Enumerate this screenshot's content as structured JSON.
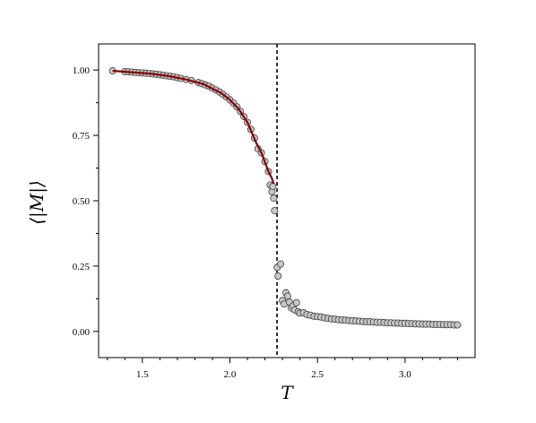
{
  "chart_data": {
    "type": "scatter",
    "xlabel": "T",
    "ylabel": "⟨|M|⟩",
    "xlim": [
      1.25,
      3.4
    ],
    "ylim": [
      -0.1,
      1.1
    ],
    "x_ticks": [
      1.5,
      2.0,
      2.5,
      3.0
    ],
    "x_tick_labels": [
      "1.5",
      "2.0",
      "2.5",
      "3.0"
    ],
    "y_ticks": [
      0.0,
      0.25,
      0.5,
      0.75,
      1.0
    ],
    "y_tick_labels": [
      "0.00",
      "0.25",
      "0.50",
      "0.75",
      "1.00"
    ],
    "grid": false,
    "critical_line": {
      "x": 2.269,
      "style": "dashed",
      "color": "#000000"
    },
    "marker_fill": "#c8c8c8",
    "marker_stroke": "#404040",
    "fit_color": "#8b0000",
    "series": [
      {
        "kind": "points",
        "points": [
          [
            1.33,
            0.997
          ],
          [
            1.4,
            0.994
          ],
          [
            1.42,
            0.993
          ],
          [
            1.44,
            0.992
          ],
          [
            1.46,
            0.991
          ],
          [
            1.48,
            0.99
          ],
          [
            1.5,
            0.989
          ],
          [
            1.52,
            0.988
          ],
          [
            1.54,
            0.987
          ],
          [
            1.56,
            0.985
          ],
          [
            1.58,
            0.984
          ],
          [
            1.6,
            0.982
          ],
          [
            1.62,
            0.98
          ],
          [
            1.64,
            0.978
          ],
          [
            1.66,
            0.976
          ],
          [
            1.68,
            0.974
          ],
          [
            1.7,
            0.971
          ],
          [
            1.72,
            0.968
          ],
          [
            1.75,
            0.964
          ],
          [
            1.78,
            0.96
          ],
          [
            1.82,
            0.952
          ],
          [
            1.84,
            0.948
          ],
          [
            1.86,
            0.943
          ],
          [
            1.88,
            0.938
          ],
          [
            1.9,
            0.931
          ],
          [
            1.92,
            0.924
          ],
          [
            1.94,
            0.916
          ],
          [
            1.96,
            0.907
          ],
          [
            1.98,
            0.897
          ],
          [
            2.0,
            0.886
          ],
          [
            2.02,
            0.874
          ],
          [
            2.04,
            0.859
          ],
          [
            2.06,
            0.842
          ],
          [
            2.08,
            0.822
          ],
          [
            2.1,
            0.8
          ],
          [
            2.12,
            0.773
          ],
          [
            2.14,
            0.74
          ],
          [
            2.16,
            0.699
          ],
          [
            2.18,
            0.683
          ],
          [
            2.2,
            0.65
          ],
          [
            2.22,
            0.612
          ],
          [
            2.23,
            0.56
          ],
          [
            2.24,
            0.535
          ],
          [
            2.245,
            0.555
          ],
          [
            2.25,
            0.51
          ],
          [
            2.255,
            0.462
          ],
          [
            2.27,
            0.245
          ],
          [
            2.275,
            0.212
          ],
          [
            2.29,
            0.258
          ],
          [
            2.3,
            0.118
          ],
          [
            2.31,
            0.105
          ],
          [
            2.32,
            0.148
          ],
          [
            2.33,
            0.135
          ],
          [
            2.34,
            0.112
          ],
          [
            2.35,
            0.09
          ],
          [
            2.36,
            0.098
          ],
          [
            2.37,
            0.082
          ],
          [
            2.38,
            0.11
          ],
          [
            2.39,
            0.075
          ],
          [
            2.4,
            0.07
          ],
          [
            2.42,
            0.072
          ],
          [
            2.44,
            0.065
          ],
          [
            2.46,
            0.062
          ],
          [
            2.48,
            0.058
          ],
          [
            2.5,
            0.057
          ],
          [
            2.52,
            0.055
          ],
          [
            2.54,
            0.052
          ],
          [
            2.56,
            0.05
          ],
          [
            2.58,
            0.048
          ],
          [
            2.6,
            0.047
          ],
          [
            2.62,
            0.045
          ],
          [
            2.64,
            0.044
          ],
          [
            2.66,
            0.043
          ],
          [
            2.68,
            0.042
          ],
          [
            2.7,
            0.041
          ],
          [
            2.72,
            0.04
          ],
          [
            2.74,
            0.039
          ],
          [
            2.76,
            0.038
          ],
          [
            2.78,
            0.037
          ],
          [
            2.8,
            0.037
          ],
          [
            2.82,
            0.036
          ],
          [
            2.84,
            0.035
          ],
          [
            2.86,
            0.035
          ],
          [
            2.88,
            0.034
          ],
          [
            2.9,
            0.033
          ],
          [
            2.92,
            0.033
          ],
          [
            2.94,
            0.032
          ],
          [
            2.96,
            0.032
          ],
          [
            2.98,
            0.031
          ],
          [
            3.0,
            0.031
          ],
          [
            3.02,
            0.03
          ],
          [
            3.04,
            0.03
          ],
          [
            3.06,
            0.029
          ],
          [
            3.08,
            0.029
          ],
          [
            3.1,
            0.028
          ],
          [
            3.12,
            0.028
          ],
          [
            3.14,
            0.028
          ],
          [
            3.16,
            0.027
          ],
          [
            3.18,
            0.027
          ],
          [
            3.2,
            0.027
          ],
          [
            3.22,
            0.026
          ],
          [
            3.24,
            0.026
          ],
          [
            3.26,
            0.026
          ],
          [
            3.28,
            0.025
          ],
          [
            3.3,
            0.025
          ]
        ]
      },
      {
        "kind": "fit_line",
        "points": [
          [
            1.33,
            0.997
          ],
          [
            1.45,
            0.991
          ],
          [
            1.55,
            0.986
          ],
          [
            1.65,
            0.977
          ],
          [
            1.75,
            0.964
          ],
          [
            1.85,
            0.946
          ],
          [
            1.95,
            0.912
          ],
          [
            2.0,
            0.886
          ],
          [
            2.05,
            0.851
          ],
          [
            2.1,
            0.8
          ],
          [
            2.15,
            0.722
          ],
          [
            2.18,
            0.683
          ],
          [
            2.2,
            0.648
          ],
          [
            2.22,
            0.612
          ],
          [
            2.24,
            0.585
          ],
          [
            2.25,
            0.565
          ]
        ]
      }
    ]
  }
}
